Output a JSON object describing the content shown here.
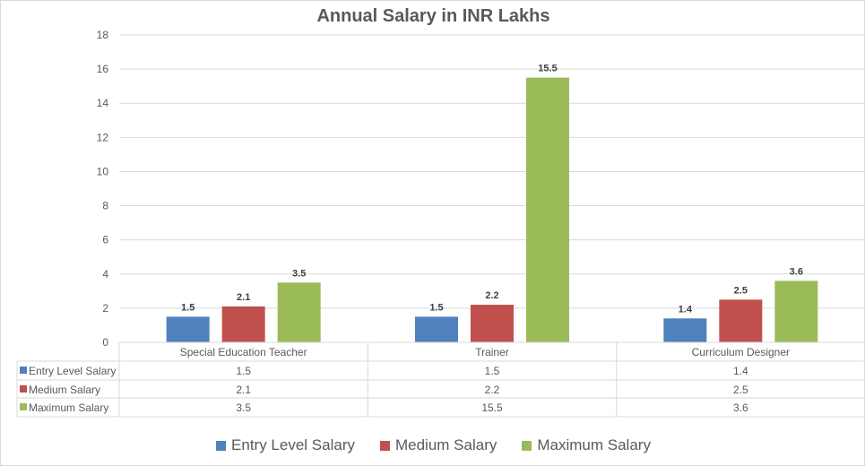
{
  "chart_data": {
    "type": "bar",
    "title": "Annual Salary in INR Lakhs",
    "categories": [
      "Special Education Teacher",
      "Trainer",
      "Curriculum Designer"
    ],
    "series": [
      {
        "name": "Entry Level Salary",
        "color": "#4f81bd",
        "values": [
          1.5,
          1.5,
          1.4
        ]
      },
      {
        "name": "Medium Salary",
        "color": "#c0504d",
        "values": [
          2.1,
          2.2,
          2.5
        ]
      },
      {
        "name": "Maximum Salary",
        "color": "#9bbb59",
        "values": [
          3.5,
          15.5,
          3.6
        ]
      }
    ],
    "ylim": [
      0,
      18
    ],
    "yticks": [
      0,
      2,
      4,
      6,
      8,
      10,
      12,
      14,
      16,
      18
    ],
    "grid": true,
    "legend": "bottom",
    "data_table": true
  }
}
